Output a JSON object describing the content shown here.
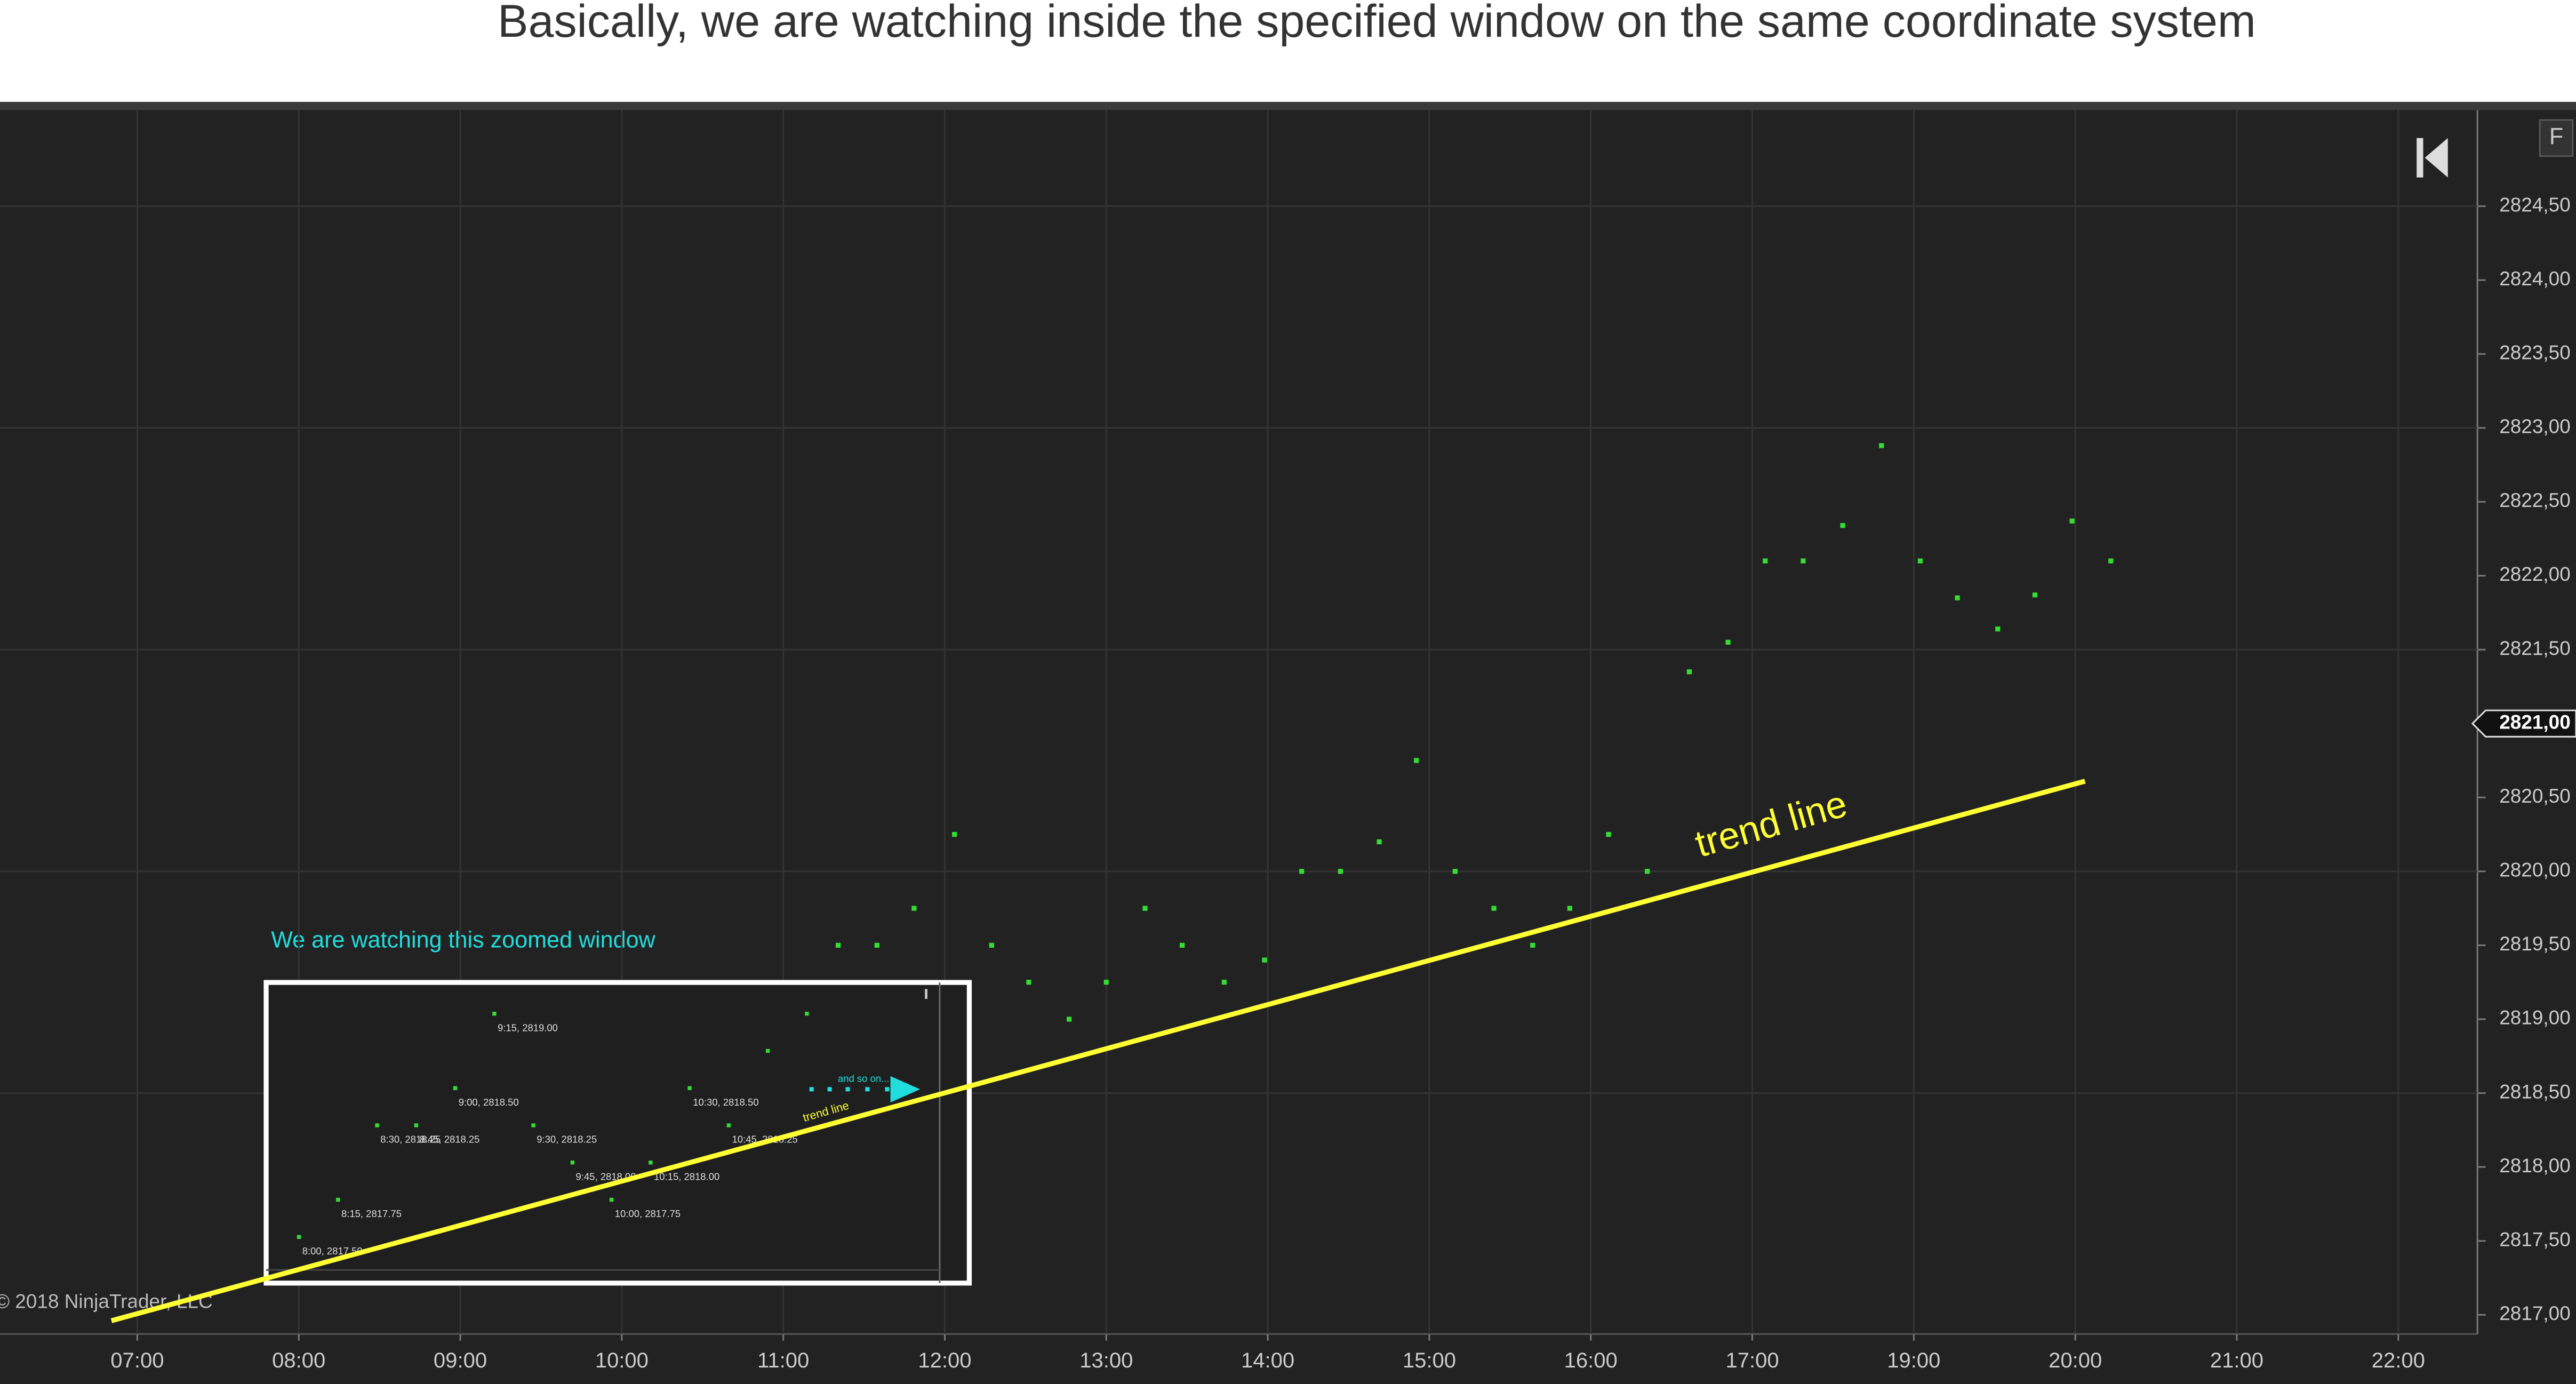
{
  "chart_data": [
    {
      "type": "scatter",
      "title": "Basically, we are watching inside the specified window on the same coordinate system",
      "annotation": "We are watching this zoomed window",
      "copyright": "© 2018 NinjaTrader, LLC",
      "x": [
        11.34,
        11.58,
        11.81,
        12.06,
        12.29,
        12.52,
        12.77,
        13.0,
        13.24,
        13.47,
        13.73,
        13.98,
        14.21,
        14.45,
        14.69,
        14.92,
        15.16,
        15.4,
        15.64,
        15.87,
        16.11,
        16.35,
        16.61,
        16.85,
        17.16,
        17.63,
        18.12,
        18.6,
        19.04,
        19.27,
        19.52,
        19.75,
        19.98,
        20.22
      ],
      "values": [
        2819.5,
        2819.5,
        2819.75,
        2820.25,
        2819.5,
        2819.25,
        2819.0,
        2819.25,
        2819.75,
        2819.5,
        2819.25,
        2819.4,
        2820.0,
        2820.0,
        2820.2,
        2820.75,
        2820.0,
        2819.75,
        2819.5,
        2819.75,
        2820.25,
        2820.0,
        2821.35,
        2821.55,
        2822.1,
        2822.1,
        2822.34,
        2822.88,
        2822.1,
        2821.85,
        2821.64,
        2821.87,
        2822.37,
        2822.1
      ],
      "color": "#33dd33",
      "xlim": [
        6.15,
        22.49
      ],
      "ylim": [
        2816.87,
        2825.15
      ],
      "xticks": [
        {
          "value": 7,
          "label": "07:00"
        },
        {
          "value": 8,
          "label": "08:00"
        },
        {
          "value": 9,
          "label": "09:00"
        },
        {
          "value": 10,
          "label": "10:00"
        },
        {
          "value": 11,
          "label": "11:00"
        },
        {
          "value": 12,
          "label": "12:00"
        },
        {
          "value": 13,
          "label": "13:00"
        },
        {
          "value": 14,
          "label": "14:00"
        },
        {
          "value": 15,
          "label": "15:00"
        },
        {
          "value": 16,
          "label": "16:00"
        },
        {
          "value": 17,
          "label": "17:00"
        },
        {
          "value": 19,
          "label": "19:00"
        },
        {
          "value": 20,
          "label": "20:00"
        },
        {
          "value": 21,
          "label": "21:00"
        },
        {
          "value": 22,
          "label": "22:00"
        }
      ],
      "yticks": [
        {
          "value": 2817,
          "label": "2817,00"
        },
        {
          "value": 2817.5,
          "label": "2817,50"
        },
        {
          "value": 2818,
          "label": "2818,00"
        },
        {
          "value": 2818.5,
          "label": "2818,50"
        },
        {
          "value": 2819,
          "label": "2819,00"
        },
        {
          "value": 2819.5,
          "label": "2819,50"
        },
        {
          "value": 2820,
          "label": "2820,00"
        },
        {
          "value": 2820.5,
          "label": "2820,50"
        },
        {
          "value": 2821,
          "label": "2821,00"
        },
        {
          "value": 2821.5,
          "label": "2821,50"
        },
        {
          "value": 2822,
          "label": "2822,00"
        },
        {
          "value": 2822.5,
          "label": "2822,50"
        },
        {
          "value": 2823,
          "label": "2823,00"
        },
        {
          "value": 2823.5,
          "label": "2823,50"
        },
        {
          "value": 2824,
          "label": "2824,00"
        },
        {
          "value": 2824.5,
          "label": "2824,50"
        }
      ],
      "grid": true,
      "price_marker": {
        "value": 2821,
        "label": "2821,00"
      },
      "trend_line": {
        "x": [
          6.84,
          20.06
        ],
        "y": [
          2816.96,
          2820.61
        ],
        "label": "trend line",
        "color": "#ffff33"
      }
    },
    {
      "type": "scatter",
      "x": [
        8,
        8.25,
        8.5,
        8.75,
        9,
        9.25,
        9.5,
        9.75,
        10,
        10.25,
        10.5,
        10.75,
        11,
        11.25
      ],
      "values": [
        2817.5,
        2817.75,
        2818.25,
        2818.25,
        2818.5,
        2819.0,
        2818.25,
        2818.0,
        2817.75,
        2818.0,
        2818.5,
        2818.25,
        2818.75,
        2819.0
      ],
      "value_labels": [
        "8:00, 2817.50",
        "8:15, 2817.75",
        "8:30, 2818.25",
        "8:45, 2818.25",
        "9:00, 2818.50",
        "9:15, 2819.00",
        "9:30, 2818.25",
        "9:45, 2818.00",
        "10:00, 2817.75",
        "10:15, 2818.00",
        "10:30, 2818.50",
        "10:45, 2818.25",
        null,
        null
      ],
      "color": "#33dd33",
      "xlim": [
        7.79,
        12.1
      ],
      "ylim": [
        2817.19,
        2819.21
      ],
      "annotation": "and so on...",
      "trend_label": "trend line"
    }
  ]
}
